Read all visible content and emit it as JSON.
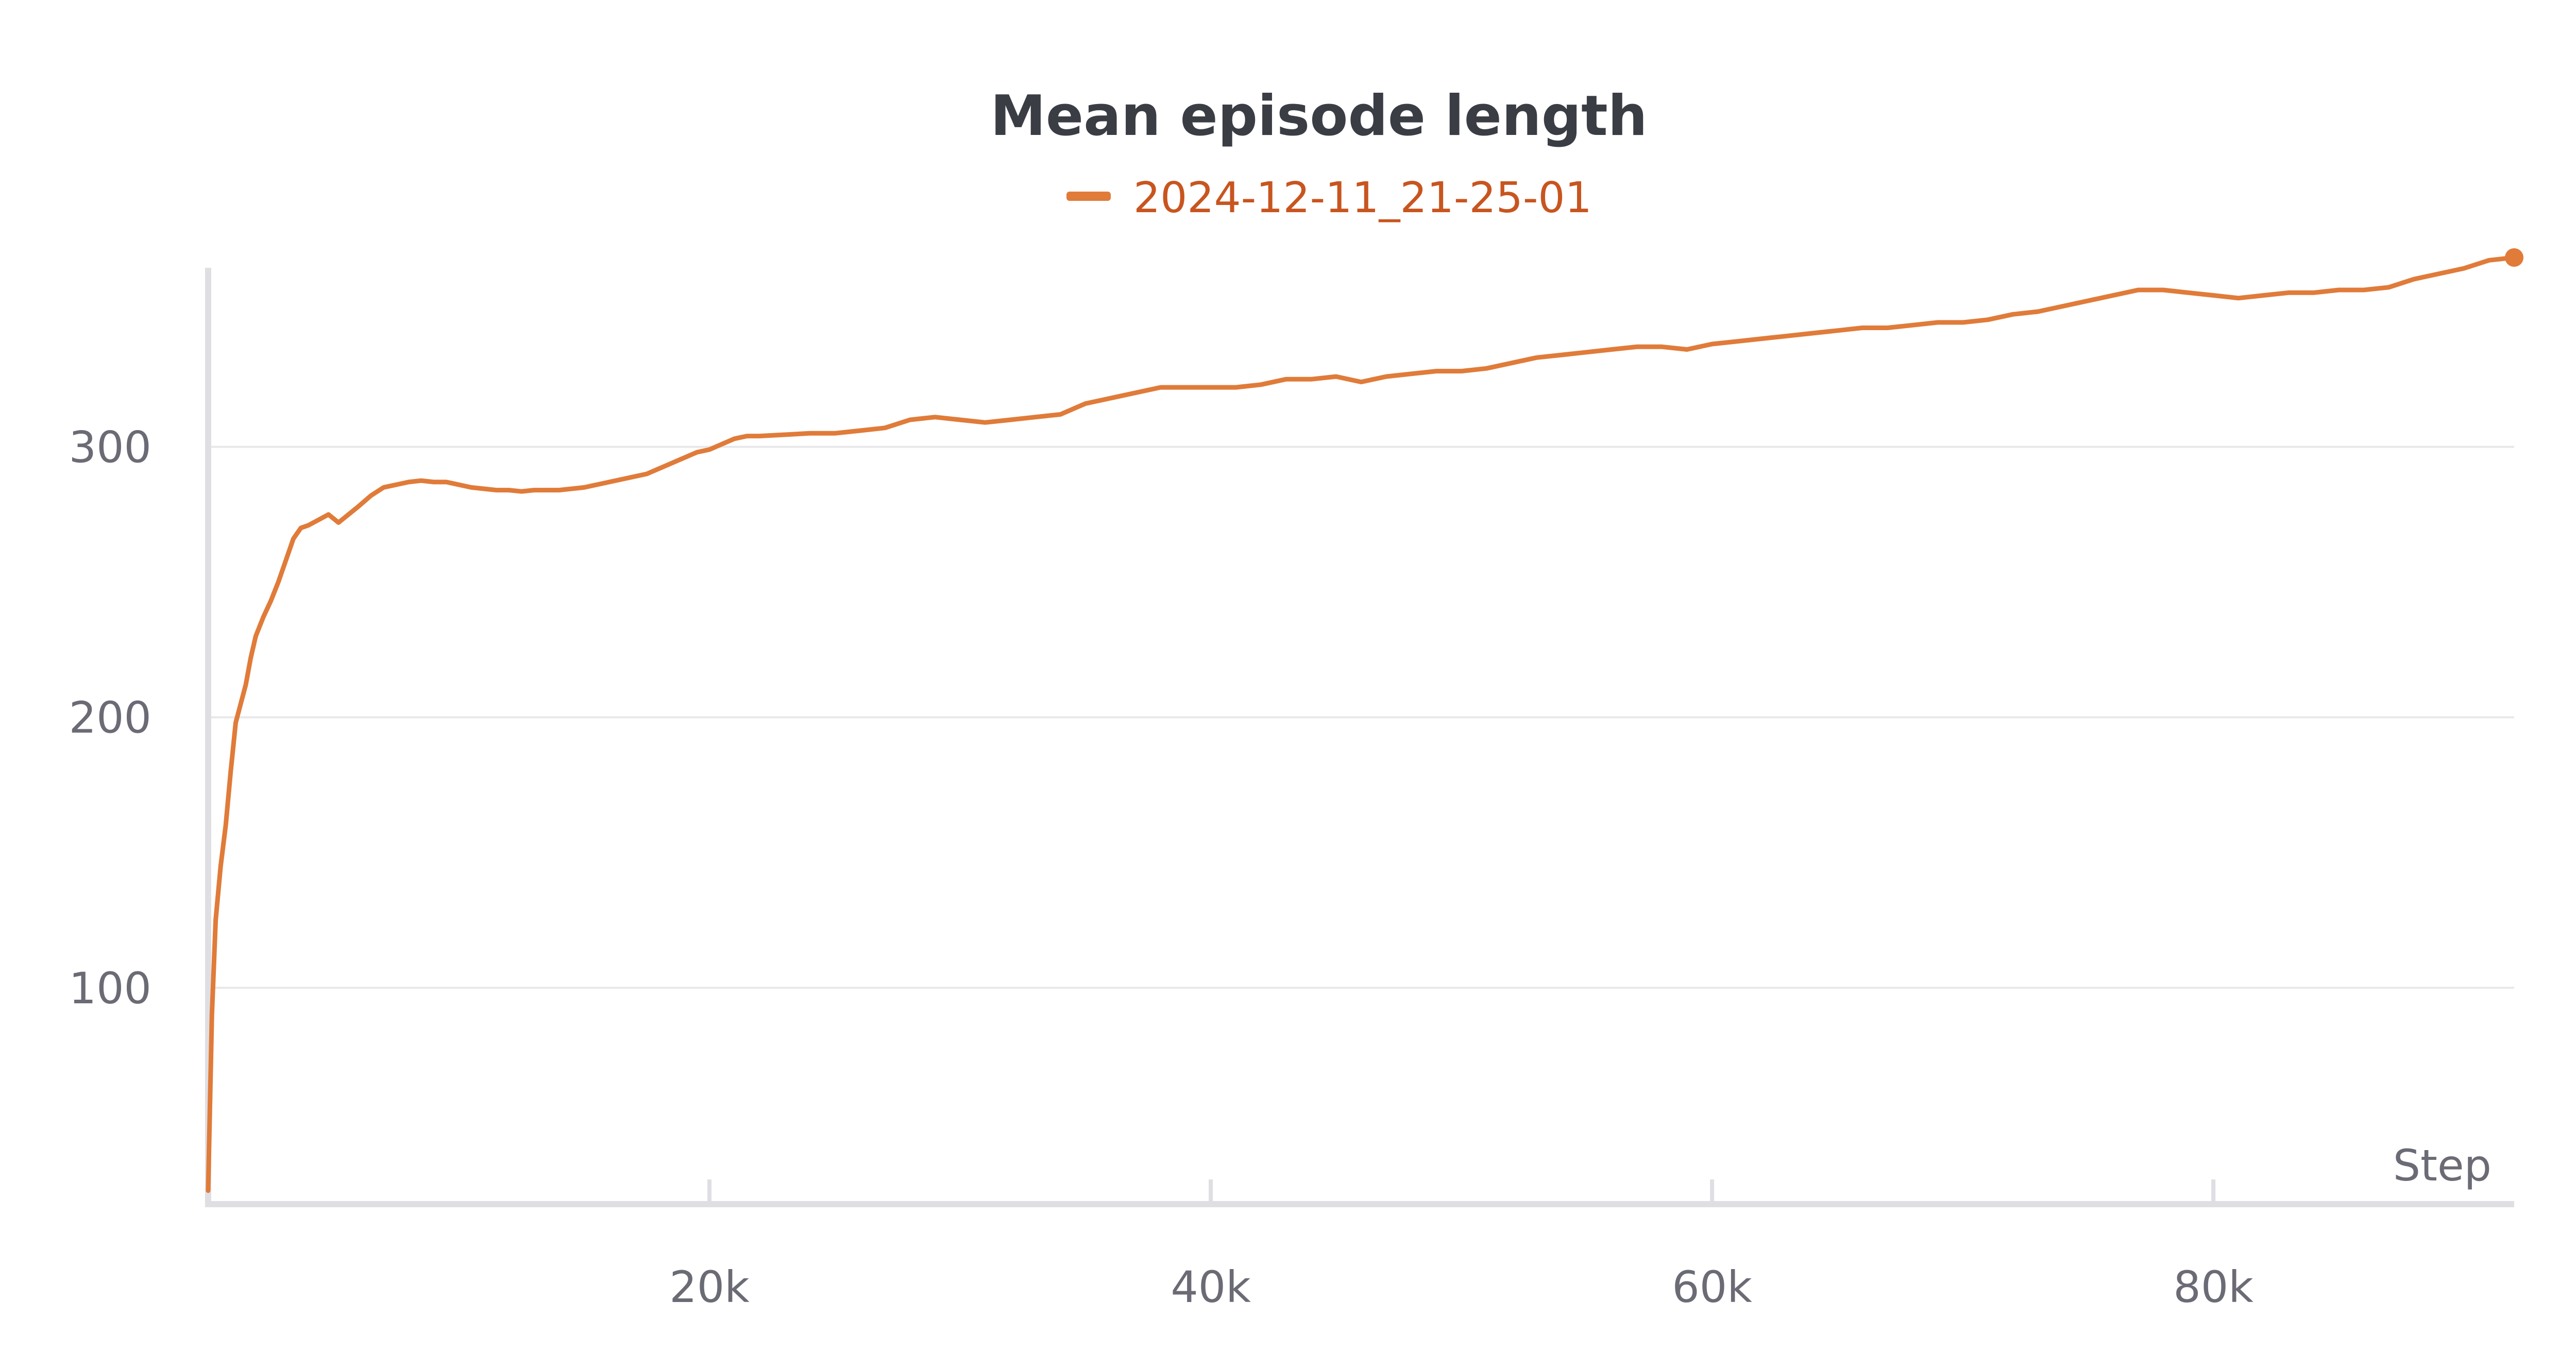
{
  "chart_data": {
    "type": "line",
    "title": "Mean episode length",
    "xlabel": "Step",
    "ylabel": "",
    "xlim": [
      0,
      92000
    ],
    "ylim": [
      20,
      370
    ],
    "x_ticks": [
      {
        "value": 20000,
        "label": "20k"
      },
      {
        "value": 40000,
        "label": "40k"
      },
      {
        "value": 60000,
        "label": "60k"
      },
      {
        "value": 80000,
        "label": "80k"
      }
    ],
    "y_ticks": [
      {
        "value": 100,
        "label": "100"
      },
      {
        "value": 200,
        "label": "200"
      },
      {
        "value": 300,
        "label": "300"
      }
    ],
    "grid": "horizontal",
    "legend_position": "top-center",
    "series": [
      {
        "name": "2024-12-11_21-25-01",
        "color": "#e07b39",
        "legend_text_color": "#c8551f",
        "end_marker": true,
        "points": [
          [
            0,
            25
          ],
          [
            150,
            90
          ],
          [
            300,
            125
          ],
          [
            500,
            145
          ],
          [
            700,
            160
          ],
          [
            900,
            180
          ],
          [
            1100,
            198
          ],
          [
            1300,
            205
          ],
          [
            1500,
            212
          ],
          [
            1700,
            222
          ],
          [
            1900,
            230
          ],
          [
            2200,
            237
          ],
          [
            2500,
            243
          ],
          [
            2800,
            250
          ],
          [
            3100,
            258
          ],
          [
            3400,
            266
          ],
          [
            3700,
            270
          ],
          [
            4000,
            271
          ],
          [
            4400,
            273
          ],
          [
            4800,
            275
          ],
          [
            5200,
            272
          ],
          [
            5600,
            275
          ],
          [
            6000,
            278
          ],
          [
            6500,
            282
          ],
          [
            7000,
            285
          ],
          [
            7500,
            286
          ],
          [
            8000,
            287
          ],
          [
            8500,
            287.5
          ],
          [
            9000,
            287
          ],
          [
            9500,
            287
          ],
          [
            10000,
            286
          ],
          [
            10500,
            285
          ],
          [
            11000,
            284.5
          ],
          [
            11500,
            284
          ],
          [
            12000,
            284
          ],
          [
            12500,
            283.5
          ],
          [
            13000,
            284
          ],
          [
            13500,
            284
          ],
          [
            14000,
            284
          ],
          [
            14500,
            284.5
          ],
          [
            15000,
            285
          ],
          [
            15500,
            286
          ],
          [
            16000,
            287
          ],
          [
            16500,
            288
          ],
          [
            17000,
            289
          ],
          [
            17500,
            290
          ],
          [
            18000,
            292
          ],
          [
            18500,
            294
          ],
          [
            19000,
            296
          ],
          [
            19500,
            298
          ],
          [
            20000,
            299
          ],
          [
            20500,
            301
          ],
          [
            21000,
            303
          ],
          [
            21500,
            304
          ],
          [
            22000,
            304
          ],
          [
            23000,
            304.5
          ],
          [
            24000,
            305
          ],
          [
            25000,
            305
          ],
          [
            26000,
            306
          ],
          [
            27000,
            307
          ],
          [
            28000,
            310
          ],
          [
            29000,
            311
          ],
          [
            30000,
            310
          ],
          [
            31000,
            309
          ],
          [
            32000,
            310
          ],
          [
            33000,
            311
          ],
          [
            34000,
            312
          ],
          [
            35000,
            316
          ],
          [
            36000,
            318
          ],
          [
            37000,
            320
          ],
          [
            38000,
            322
          ],
          [
            39000,
            322
          ],
          [
            40000,
            322
          ],
          [
            41000,
            322
          ],
          [
            42000,
            323
          ],
          [
            43000,
            325
          ],
          [
            44000,
            325
          ],
          [
            45000,
            326
          ],
          [
            46000,
            324
          ],
          [
            47000,
            326
          ],
          [
            48000,
            327
          ],
          [
            49000,
            328
          ],
          [
            50000,
            328
          ],
          [
            51000,
            329
          ],
          [
            52000,
            331
          ],
          [
            53000,
            333
          ],
          [
            54000,
            334
          ],
          [
            55000,
            335
          ],
          [
            56000,
            336
          ],
          [
            57000,
            337
          ],
          [
            58000,
            337
          ],
          [
            59000,
            336
          ],
          [
            60000,
            338
          ],
          [
            61000,
            339
          ],
          [
            62000,
            340
          ],
          [
            63000,
            341
          ],
          [
            64000,
            342
          ],
          [
            65000,
            343
          ],
          [
            66000,
            344
          ],
          [
            67000,
            344
          ],
          [
            68000,
            345
          ],
          [
            69000,
            346
          ],
          [
            70000,
            346
          ],
          [
            71000,
            347
          ],
          [
            72000,
            349
          ],
          [
            73000,
            350
          ],
          [
            74000,
            352
          ],
          [
            75000,
            354
          ],
          [
            76000,
            356
          ],
          [
            77000,
            358
          ],
          [
            78000,
            358
          ],
          [
            79000,
            357
          ],
          [
            80000,
            356
          ],
          [
            81000,
            355
          ],
          [
            82000,
            356
          ],
          [
            83000,
            357
          ],
          [
            84000,
            357
          ],
          [
            85000,
            358
          ],
          [
            86000,
            358
          ],
          [
            87000,
            359
          ],
          [
            88000,
            362
          ],
          [
            89000,
            364
          ],
          [
            90000,
            366
          ],
          [
            91000,
            369
          ],
          [
            92000,
            370
          ]
        ]
      }
    ]
  }
}
